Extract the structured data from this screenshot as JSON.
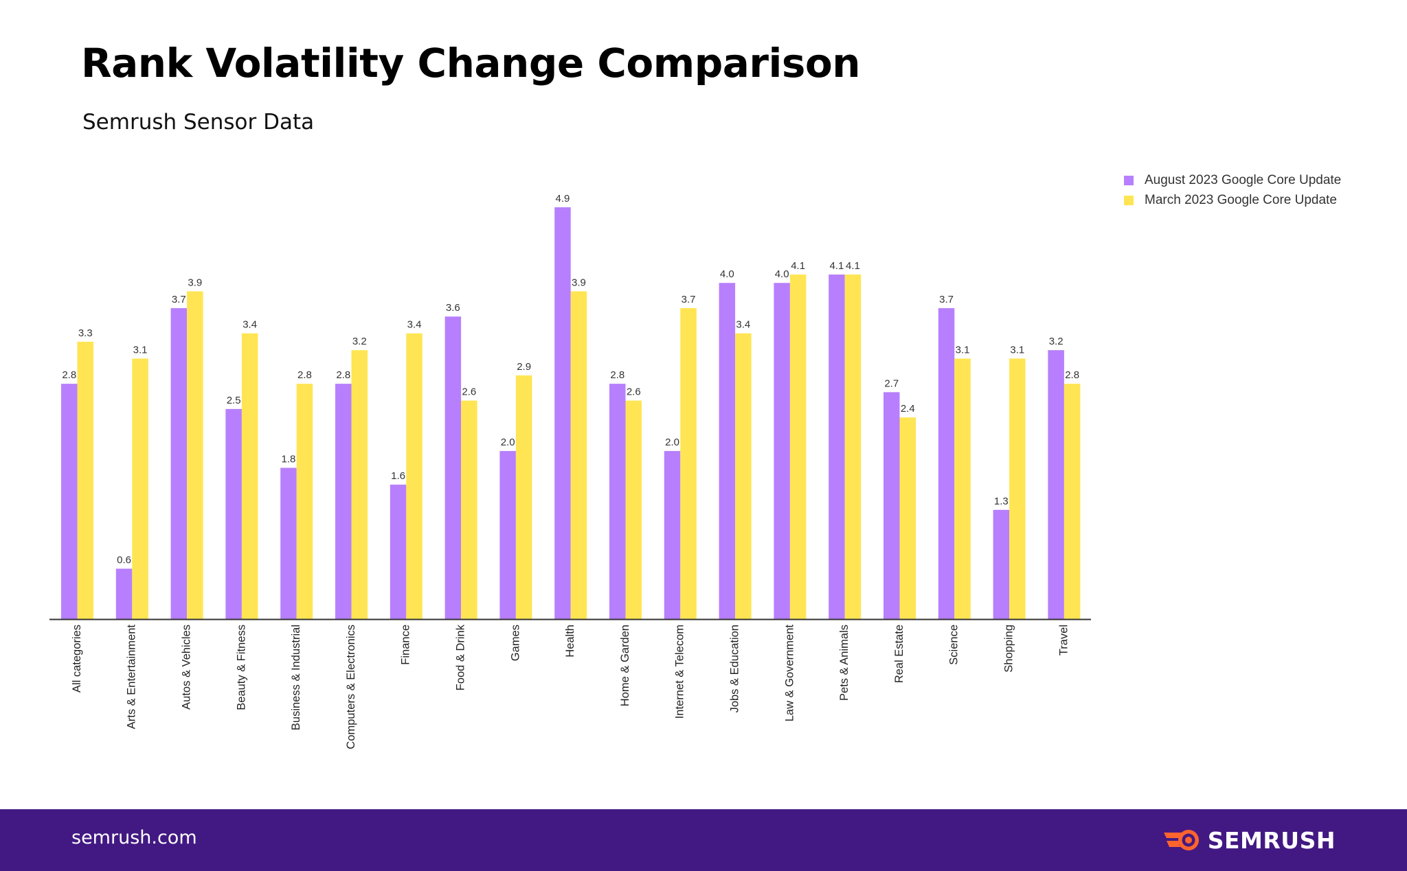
{
  "header": {
    "title": "Rank Volatility Change Comparison",
    "subtitle": "Semrush Sensor Data"
  },
  "footer": {
    "url": "semrush.com",
    "brand": "SEMRUSH"
  },
  "colors": {
    "august": "#b77ffd",
    "march": "#ffe553",
    "axis": "#333333",
    "footer_bg": "#421983",
    "logo_orange": "#ff642d"
  },
  "chart_data": {
    "type": "bar",
    "title": "Rank Volatility Change Comparison",
    "subtitle": "Semrush Sensor Data",
    "xlabel": "",
    "ylabel": "",
    "ylim": [
      0,
      4.9
    ],
    "grid": false,
    "legend_position": "top-right",
    "categories": [
      "All categories",
      "Arts & Entertainment",
      "Autos & Vehicles",
      "Beauty & Fitness",
      "Business & Industrial",
      "Computers & Electronics",
      "Finance",
      "Food & Drink",
      "Games",
      "Health",
      "Home & Garden",
      "Internet & Telecom",
      "Jobs & Education",
      "Law & Government",
      "Pets & Animals",
      "Real Estate",
      "Science",
      "Shopping",
      "Travel"
    ],
    "series": [
      {
        "name": "August 2023 Google Core Update",
        "color": "#b77ffd",
        "values": [
          2.8,
          0.6,
          3.7,
          2.5,
          1.8,
          2.8,
          1.6,
          3.6,
          2.0,
          4.9,
          2.8,
          2.0,
          4.0,
          4.0,
          4.1,
          2.7,
          3.7,
          1.3,
          3.2
        ],
        "labels": [
          "2.8",
          "0.6",
          "3.7",
          "2.5",
          "1.8",
          "2.8",
          "1.6",
          "3.6",
          "2.0",
          "4.9",
          "2.8",
          "2.0",
          "4.0",
          "4.0",
          "4.1",
          "2.7",
          "3.7",
          "1.3",
          "3.2"
        ]
      },
      {
        "name": "March 2023 Google Core Update",
        "color": "#ffe553",
        "values": [
          3.3,
          3.1,
          3.9,
          3.4,
          2.8,
          3.2,
          3.4,
          2.6,
          2.9,
          3.9,
          2.6,
          3.7,
          3.4,
          4.1,
          4.1,
          2.4,
          3.1,
          3.1,
          2.8
        ],
        "labels": [
          "3.3",
          "3.1",
          "3.9",
          "3.4",
          "2.8",
          "3.2",
          "3.4",
          "2.6",
          "2.9",
          "3.9",
          "2.6",
          "3.7",
          "3.4",
          "4.1",
          "4.1",
          "2.4",
          "3.1",
          "3.1",
          "2.8"
        ]
      }
    ]
  }
}
